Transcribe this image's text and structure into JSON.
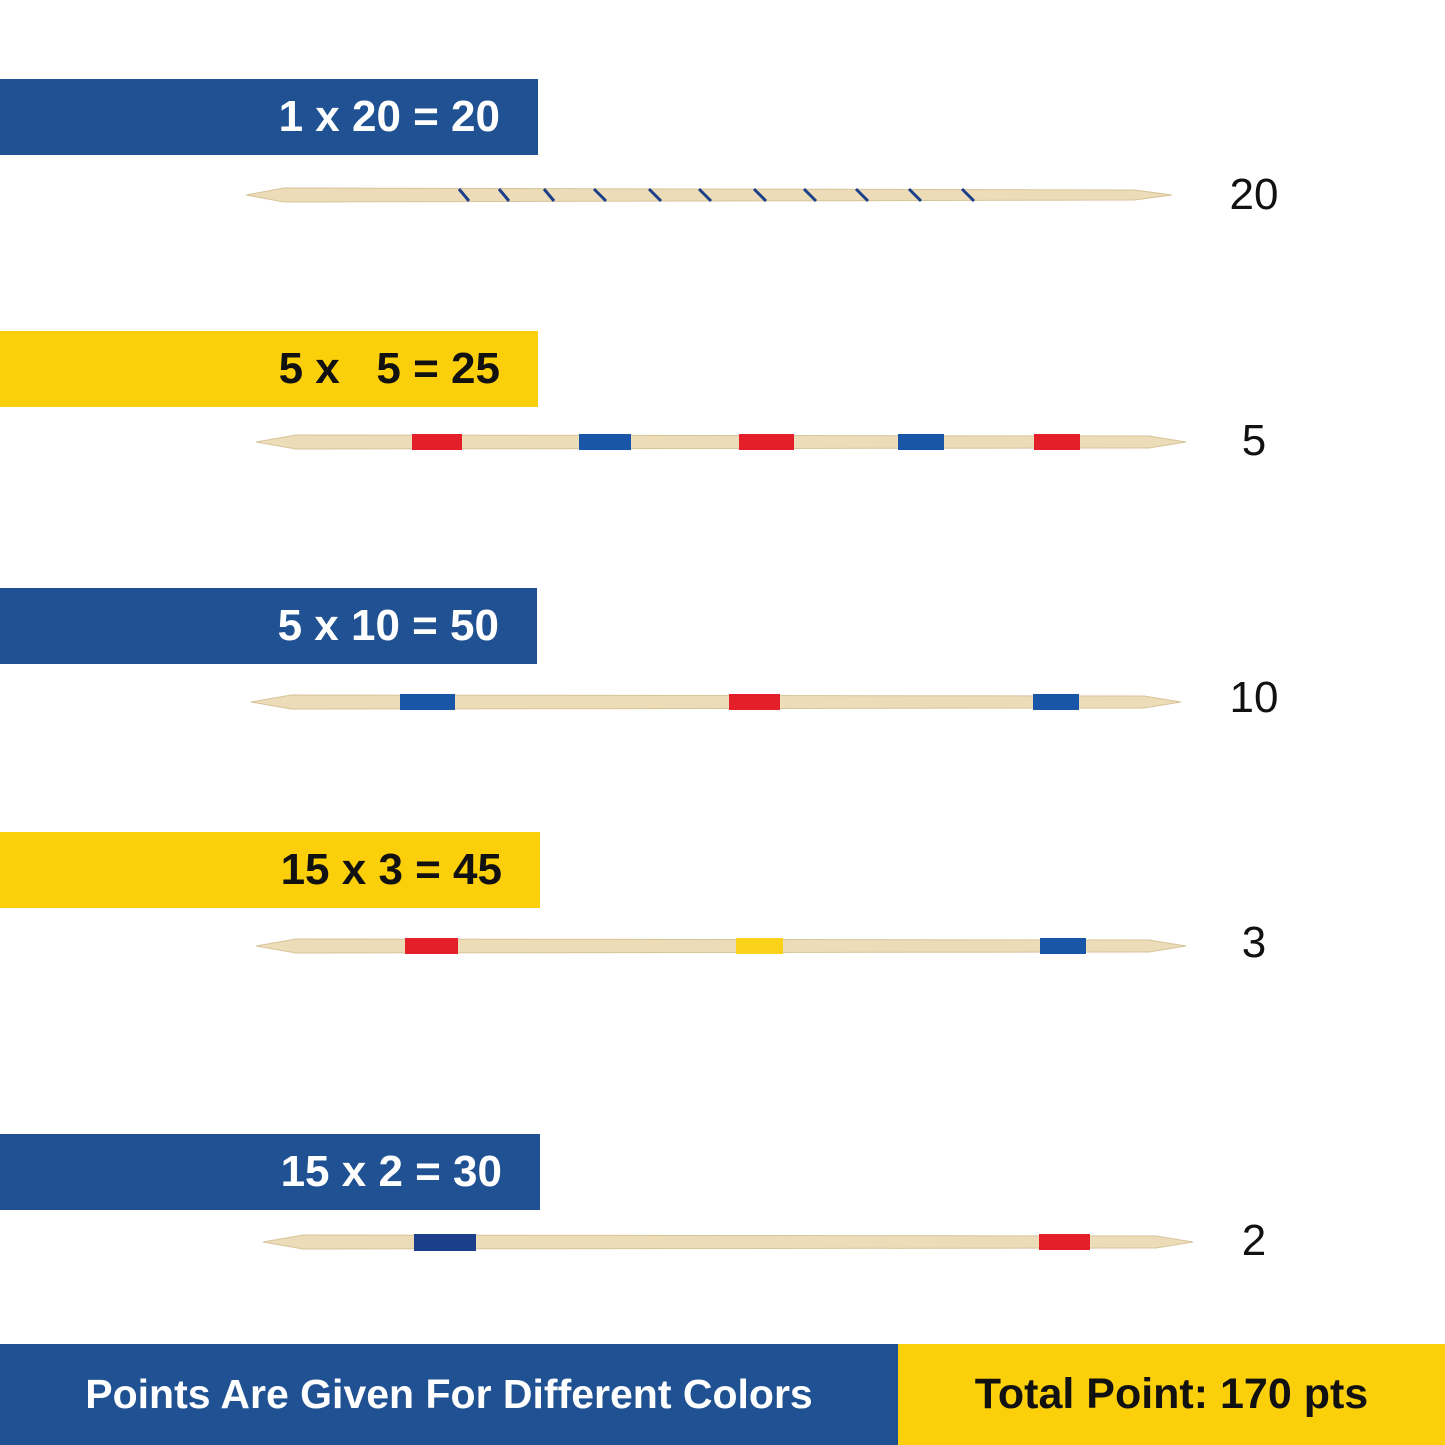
{
  "rows": [
    {
      "formula": "1 x 20 = 20",
      "points": "20",
      "banner_color": "blue",
      "stick": "spiral"
    },
    {
      "formula": "5 x   5 = 25",
      "points": "5",
      "banner_color": "yellow",
      "stick": "red-blue-red-blue-red"
    },
    {
      "formula": "5 x 10 = 50",
      "points": "10",
      "banner_color": "blue",
      "stick": "blue-red-blue"
    },
    {
      "formula": "15 x 3 = 45",
      "points": "3",
      "banner_color": "yellow",
      "stick": "red-yellow-blue"
    },
    {
      "formula": "15 x 2 = 30",
      "points": "2",
      "banner_color": "blue",
      "stick": "blue-red"
    }
  ],
  "footer": {
    "left_text": "Points Are Given For Different Colors",
    "right_text": "Total Point: 170 pts"
  },
  "colors": {
    "banner_blue": "#1f5193",
    "banner_yellow": "#fbcf0a",
    "wood": "#ecdcb8",
    "band_red": "#e3202a",
    "band_blue": "#1a56a8",
    "band_navy": "#1b3f8a",
    "band_yellow": "#fbd21a"
  }
}
